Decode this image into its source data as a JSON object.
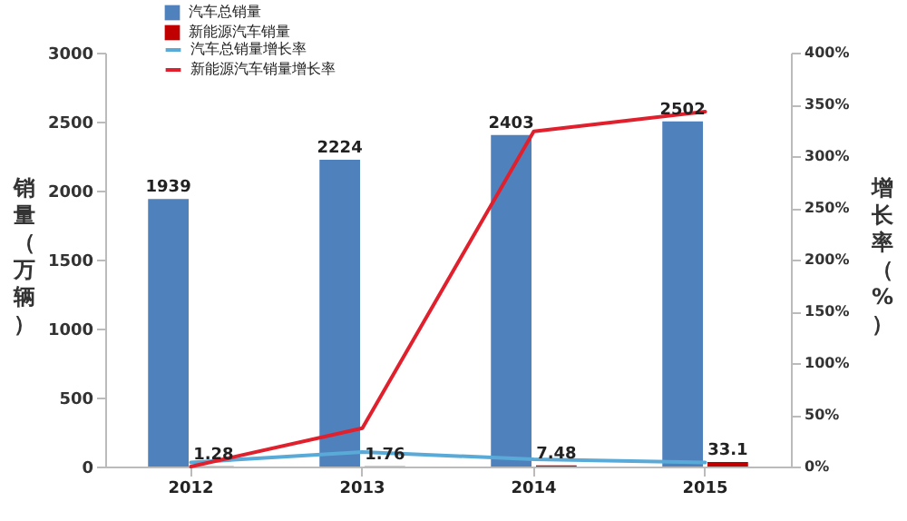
{
  "chart_data": {
    "type": "bar",
    "categories": [
      "2012",
      "2013",
      "2014",
      "2015"
    ],
    "series": [
      {
        "name": "汽车总销量",
        "type": "bar",
        "color": "#4f81bd",
        "values": [
          1939,
          2224,
          2403,
          2502
        ],
        "value_labels": [
          "1939",
          "2224",
          "2403",
          "2502"
        ]
      },
      {
        "name": "新能源汽车销量",
        "type": "bar",
        "color": "#c00000",
        "values": [
          1.28,
          1.76,
          7.48,
          33.1
        ],
        "value_labels": [
          "1.28",
          "1.76",
          "7.48",
          "33.1"
        ]
      },
      {
        "name": "汽车总销量增长率",
        "type": "line",
        "axis": "y2",
        "color": "#5aaad8",
        "values": [
          4,
          14,
          7,
          4
        ]
      },
      {
        "name": "新能源汽车销量增长率",
        "type": "line",
        "axis": "y2",
        "color": "#e0202c",
        "values": [
          0,
          37,
          324,
          343
        ]
      }
    ],
    "ylabel": "销量（万辆）",
    "y2label": "增长率（%）",
    "ylim": [
      0,
      3000
    ],
    "yticks": [
      0,
      500,
      1000,
      1500,
      2000,
      2500,
      3000
    ],
    "y2lim": [
      0,
      400
    ],
    "y2ticks": [
      {
        "value": 0,
        "label": "0%"
      },
      {
        "value": 50,
        "label": "50%"
      },
      {
        "value": 100,
        "label": "100%"
      },
      {
        "value": 150,
        "label": "150%"
      },
      {
        "value": 200,
        "label": "200%"
      },
      {
        "value": 250,
        "label": "250%"
      },
      {
        "value": 300,
        "label": "300%"
      },
      {
        "value": 350,
        "label": "350%"
      },
      {
        "value": 400,
        "label": "400%"
      }
    ],
    "legend": "top left"
  }
}
